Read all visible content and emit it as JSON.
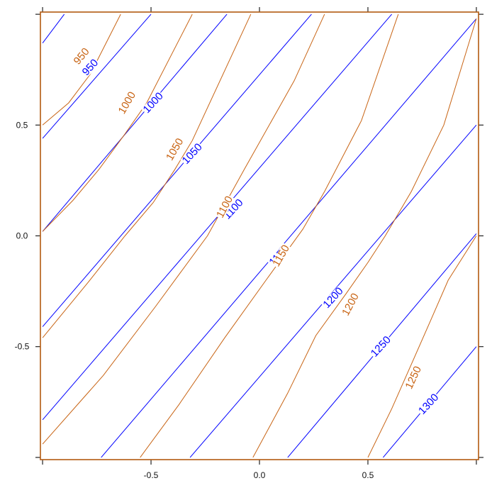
{
  "chart_data": {
    "type": "contour",
    "title": "",
    "xlabel": "",
    "ylabel": "",
    "xlim": [
      -1.01,
      1.01
    ],
    "ylim": [
      -1.01,
      1.01
    ],
    "x_ticks": [
      {
        "value": -0.5,
        "label": "-0.5"
      },
      {
        "value": 0.0,
        "label": "0.0"
      },
      {
        "value": 0.5,
        "label": "0.5"
      }
    ],
    "y_ticks": [
      {
        "value": 0.5,
        "label": "0.5"
      },
      {
        "value": 0.0,
        "label": "0.0"
      },
      {
        "value": -0.5,
        "label": "-0.5"
      }
    ],
    "frame_color": "#b25a10",
    "series": [
      {
        "color": "#0000ff",
        "contours": [
          {
            "level": 950,
            "label": "950",
            "points": [
              [
                -1,
                0.87
              ],
              [
                -0.9,
                1.0
              ]
            ]
          },
          {
            "level": 950,
            "label": "950",
            "points": [
              [
                -1,
                0.44
              ],
              [
                -0.5,
                1.0
              ]
            ],
            "label_at": [
              -0.78,
              0.76
            ],
            "label_angle": -47
          },
          {
            "level": 1000,
            "label": "1000",
            "points": [
              [
                -1,
                0.02
              ],
              [
                -0.15,
                1.0
              ]
            ],
            "label_at": [
              -0.49,
              0.6
            ],
            "label_angle": -47
          },
          {
            "level": 1050,
            "label": "1050",
            "points": [
              [
                -1,
                -0.41
              ],
              [
                0.24,
                1.0
              ]
            ],
            "label_at": [
              -0.31,
              0.37
            ],
            "label_angle": -47
          },
          {
            "level": 1100,
            "label": "1100",
            "points": [
              [
                -1,
                -0.83
              ],
              [
                0.61,
                1.0
              ]
            ],
            "label_at": [
              -0.12,
              0.12
            ],
            "label_angle": -47
          },
          {
            "level": 1150,
            "label": "1150",
            "points": [
              [
                -0.73,
                -1.0
              ],
              [
                1.0,
                0.98
              ]
            ],
            "label_at": [
              0.09,
              -0.09
            ],
            "label_angle": -47
          },
          {
            "level": 1200,
            "label": "1200",
            "points": [
              [
                -0.32,
                -1.0
              ],
              [
                1.0,
                0.5
              ]
            ],
            "label_at": [
              0.34,
              -0.28
            ],
            "label_angle": -47
          },
          {
            "level": 1250,
            "label": "1250",
            "points": [
              [
                0.13,
                -1.0
              ],
              [
                1.0,
                0.01
              ]
            ],
            "label_at": [
              0.56,
              -0.5
            ],
            "label_angle": -47
          },
          {
            "level": 1300,
            "label": "1300",
            "points": [
              [
                0.57,
                -1.0
              ],
              [
                1.0,
                -0.5
              ]
            ],
            "label_at": [
              0.78,
              -0.76
            ],
            "label_angle": -47
          }
        ]
      },
      {
        "color": "#c86414",
        "contours": [
          {
            "level": 950,
            "label": "950",
            "points": [
              [
                -1,
                0.5
              ],
              [
                -0.88,
                0.6
              ],
              [
                -0.78,
                0.73
              ],
              [
                -0.64,
                1.0
              ]
            ],
            "label_at": [
              -0.82,
              0.81
            ],
            "label_angle": -50
          },
          {
            "level": 1000,
            "label": "1000",
            "points": [
              [
                -1,
                0.02
              ],
              [
                -0.86,
                0.16
              ],
              [
                -0.74,
                0.3
              ],
              [
                -0.62,
                0.46
              ],
              [
                -0.52,
                0.6
              ],
              [
                -0.31,
                1.0
              ]
            ],
            "label_at": [
              -0.61,
              0.6
            ],
            "label_angle": -60
          },
          {
            "level": 1050,
            "label": "1050",
            "points": [
              [
                -1,
                -0.46
              ],
              [
                -0.79,
                -0.21
              ],
              [
                -0.62,
                0.0
              ],
              [
                -0.49,
                0.15
              ],
              [
                -0.39,
                0.3
              ],
              [
                -0.31,
                0.43
              ],
              [
                -0.04,
                1.0
              ]
            ],
            "label_at": [
              -0.39,
              0.39
            ],
            "label_angle": -60
          },
          {
            "level": 1100,
            "label": "1100",
            "points": [
              [
                -1,
                -0.94
              ],
              [
                -0.72,
                -0.63
              ],
              [
                -0.48,
                -0.32
              ],
              [
                -0.24,
                0.0
              ],
              [
                -0.07,
                0.3
              ],
              [
                0.16,
                0.7
              ],
              [
                0.3,
                1.0
              ]
            ],
            "label_at": [
              -0.16,
              0.13
            ],
            "label_angle": -62
          },
          {
            "level": 1150,
            "label": "1150",
            "points": [
              [
                -0.55,
                -1.0
              ],
              [
                -0.37,
                -0.76
              ],
              [
                -0.16,
                -0.46
              ],
              [
                0.03,
                -0.2
              ],
              [
                0.2,
                0.03
              ],
              [
                0.3,
                0.2
              ],
              [
                0.47,
                0.52
              ],
              [
                0.64,
                1.0
              ]
            ],
            "label_at": [
              0.1,
              -0.09
            ],
            "label_angle": -60
          },
          {
            "level": 1200,
            "label": "1200",
            "points": [
              [
                -0.03,
                -1.0
              ],
              [
                0.13,
                -0.71
              ],
              [
                0.26,
                -0.45
              ],
              [
                0.4,
                -0.26
              ],
              [
                0.5,
                -0.12
              ],
              [
                0.58,
                0.0
              ],
              [
                0.7,
                0.2
              ],
              [
                0.85,
                0.5
              ],
              [
                1.0,
                0.98
              ]
            ],
            "label_at": [
              0.42,
              -0.31
            ],
            "label_angle": -62
          },
          {
            "level": 1250,
            "label": "1250",
            "points": [
              [
                0.5,
                -1.0
              ],
              [
                0.61,
                -0.78
              ],
              [
                0.7,
                -0.58
              ],
              [
                0.79,
                -0.38
              ],
              [
                0.87,
                -0.2
              ],
              [
                1.0,
                0.0
              ]
            ],
            "label_at": [
              0.71,
              -0.64
            ],
            "label_angle": -65
          }
        ]
      }
    ]
  }
}
